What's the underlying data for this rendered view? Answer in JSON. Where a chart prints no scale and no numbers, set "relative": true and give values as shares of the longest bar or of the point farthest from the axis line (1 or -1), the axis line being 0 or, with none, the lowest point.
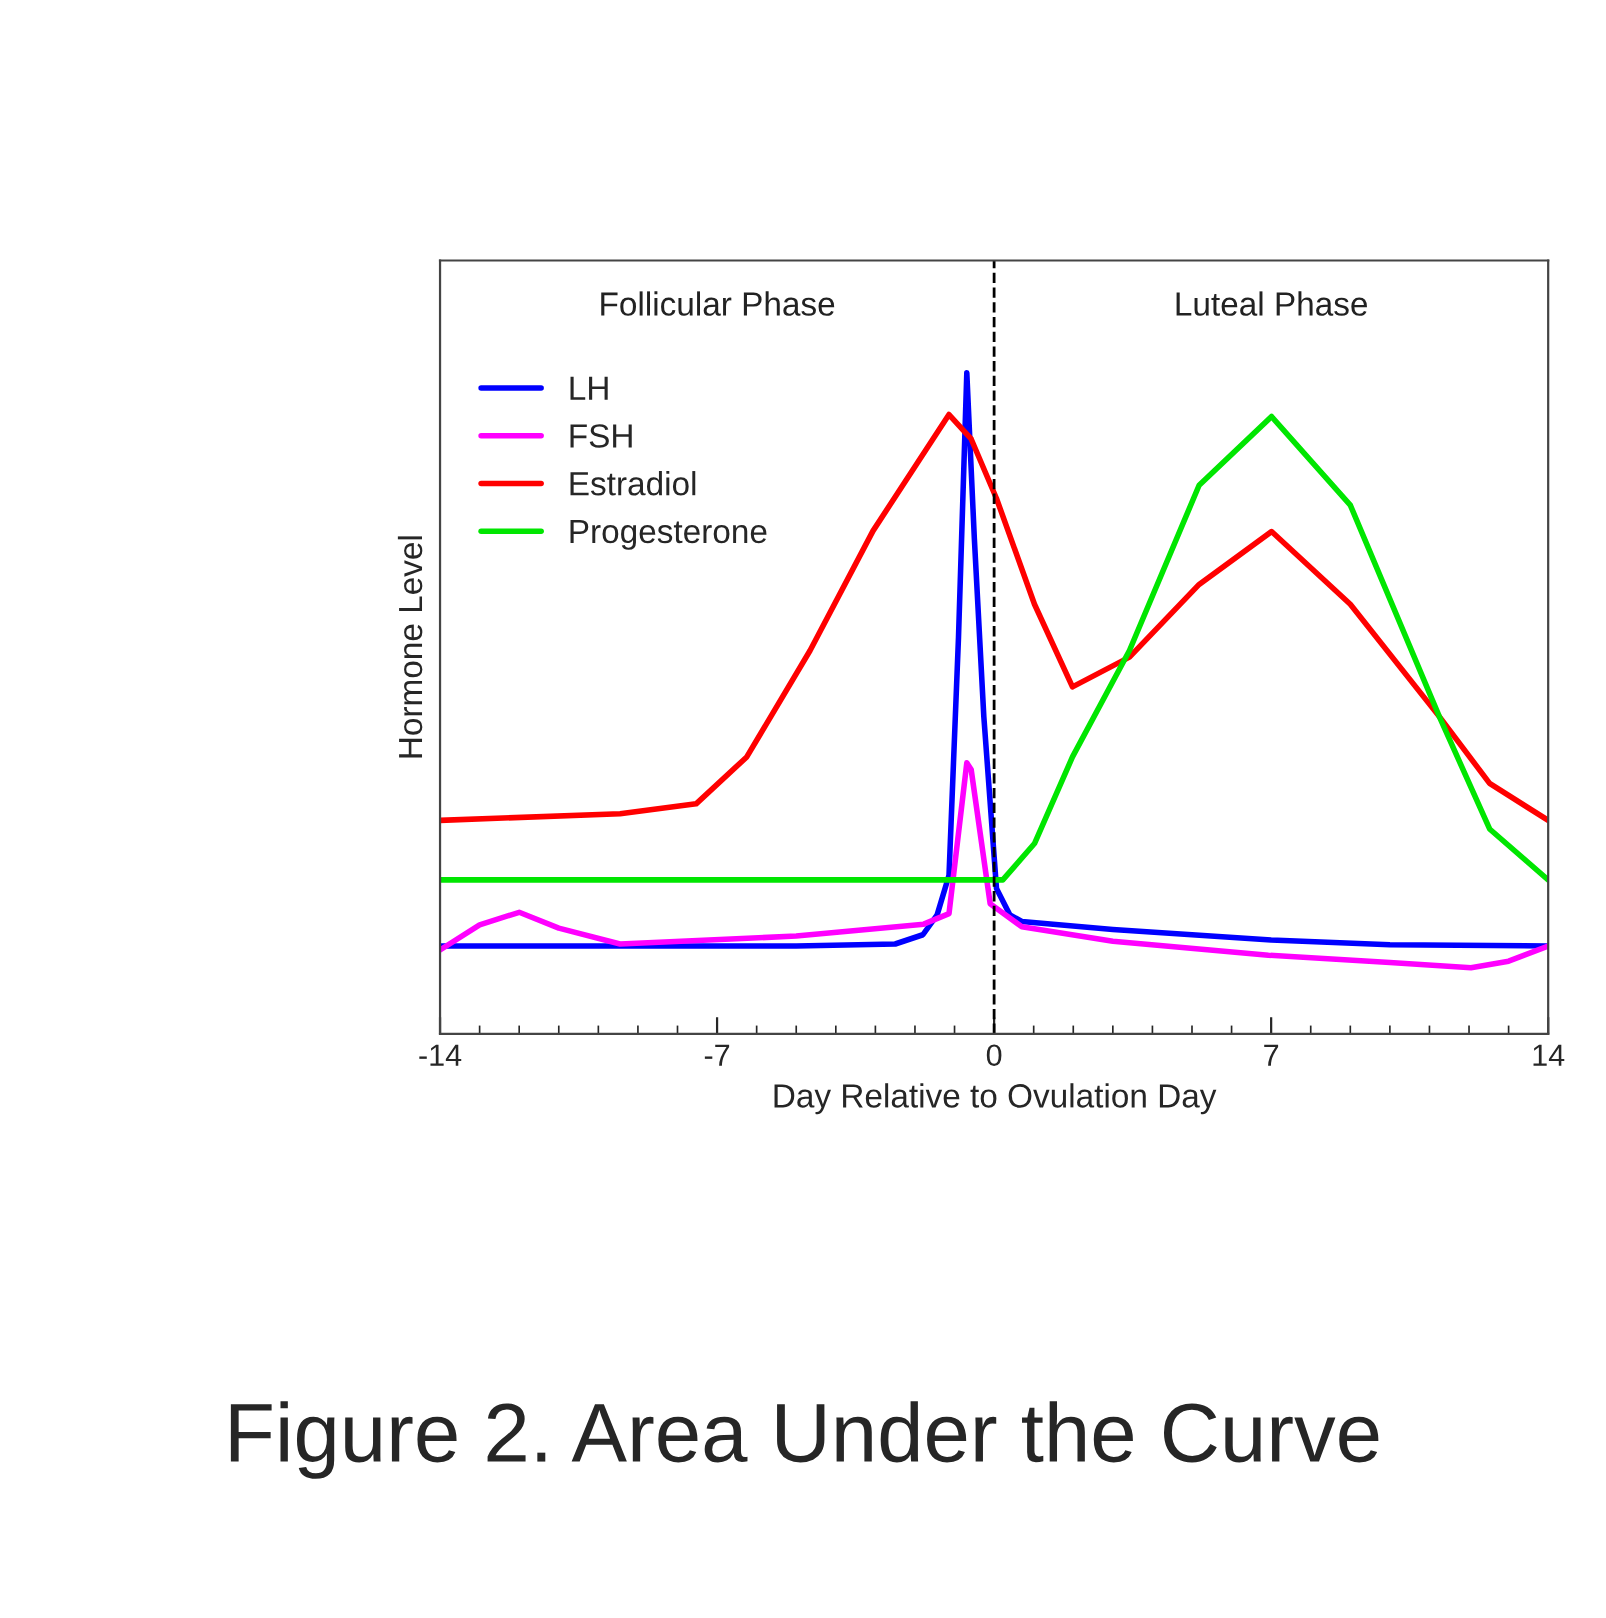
{
  "chart_data": {
    "type": "line",
    "title": "Figure 2. Area Under the Curve",
    "xlabel": "Day Relative to Ovulation Day",
    "ylabel": "Hormone Level",
    "annotations": [
      "Follicular Phase",
      "Luteal Phase"
    ],
    "relative": true,
    "xlim": [
      -14,
      14
    ],
    "xticks": [
      -14,
      -7,
      0,
      7,
      14
    ],
    "ref_lines": [
      {
        "axis": "x",
        "value": 0,
        "color": "#000000",
        "line_style": "dashed"
      }
    ],
    "legend": "top left",
    "grid": false,
    "series": [
      {
        "name": "LH",
        "color": "#0000ff",
        "x": [
          -14,
          -5,
          -2.5,
          -1.8,
          -1.44,
          -1.14,
          -0.9,
          -0.69,
          -0.5,
          -0.26,
          0.06,
          0.4,
          0.7,
          3,
          7,
          10,
          14
        ],
        "values": [
          0.133,
          0.133,
          0.136,
          0.15,
          0.18,
          0.24,
          0.6,
          1.0,
          0.75,
          0.48,
          0.22,
          0.18,
          0.17,
          0.158,
          0.142,
          0.135,
          0.133
        ]
      },
      {
        "name": "FSH",
        "color": "#ff00ff",
        "x": [
          -14,
          -13,
          -12,
          -11,
          -9.45,
          -5,
          -1.78,
          -1.14,
          -0.69,
          -0.58,
          -0.1,
          0.7,
          3,
          6.93,
          10,
          12.05,
          13,
          14
        ],
        "values": [
          0.127,
          0.165,
          0.184,
          0.16,
          0.136,
          0.148,
          0.166,
          0.182,
          0.41,
          0.4,
          0.197,
          0.162,
          0.14,
          0.119,
          0.108,
          0.1,
          0.11,
          0.133
        ]
      },
      {
        "name": "Estradiol",
        "color": "#ff0000",
        "x": [
          -14,
          -9.45,
          -7.53,
          -6.25,
          -4.65,
          -3.06,
          -1.14,
          -0.58,
          0.06,
          1.02,
          1.98,
          3.42,
          5.18,
          7.01,
          9.0,
          11.25,
          12.52,
          14
        ],
        "values": [
          0.323,
          0.333,
          0.348,
          0.419,
          0.58,
          0.761,
          0.937,
          0.9,
          0.81,
          0.65,
          0.525,
          0.57,
          0.68,
          0.76,
          0.65,
          0.48,
          0.379,
          0.323
        ]
      },
      {
        "name": "Progesterone",
        "color": "#00e600",
        "x": [
          -14,
          -5,
          0.22,
          1.02,
          1.98,
          3.42,
          5.18,
          7.01,
          9.0,
          11.25,
          12.52,
          14
        ],
        "values": [
          0.233,
          0.233,
          0.233,
          0.288,
          0.419,
          0.58,
          0.83,
          0.934,
          0.8,
          0.48,
          0.31,
          0.233
        ]
      }
    ]
  }
}
